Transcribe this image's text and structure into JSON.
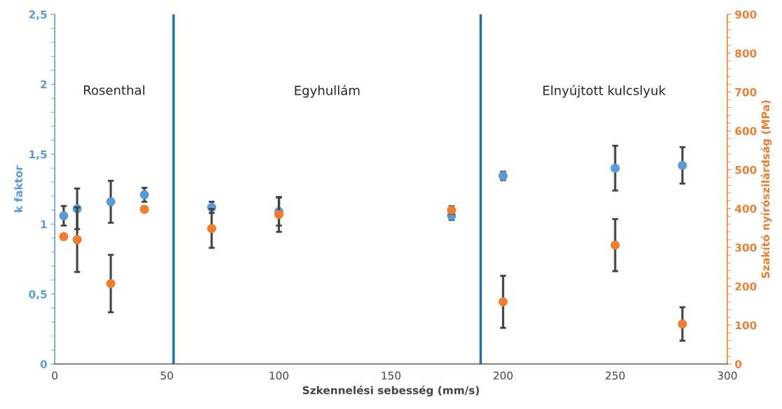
{
  "chart_data": {
    "type": "scatter",
    "xlabel": "Szkennelési sebesség (mm/s)",
    "ylabel": "k faktor",
    "y2label": "Szakító nyírószilárdság (MPa)",
    "x": [
      4,
      10,
      25,
      40,
      70,
      100,
      177,
      200,
      250,
      280
    ],
    "series": [
      {
        "color": "#5b9bd5",
        "values": [
          1.06,
          1.11,
          1.16,
          1.21,
          1.12,
          1.09,
          1.06,
          1.345,
          1.4,
          1.42
        ],
        "errors": [
          0.07,
          0.145,
          0.15,
          0.05,
          0.04,
          0.1,
          0.03,
          0.03,
          0.16,
          0.13
        ]
      },
      {
        "color": "#ed7d31",
        "axis": "y2",
        "values": [
          328,
          320,
          207,
          398,
          349,
          385,
          396,
          160,
          306,
          103
        ],
        "errors": [
          null,
          83,
          74,
          null,
          50,
          45,
          10,
          67,
          67,
          43
        ]
      }
    ],
    "xlim": [
      0,
      300
    ],
    "xticks": [
      0,
      50,
      100,
      150,
      200,
      250,
      300
    ],
    "ylim": [
      0,
      2.5
    ],
    "yticks": [
      0,
      {
        "value": 0.5,
        "label": "0,5"
      },
      1,
      {
        "value": 1.5,
        "label": "1,5"
      },
      2,
      {
        "value": 2.5,
        "label": "2,5"
      }
    ],
    "y2lim": [
      0,
      900
    ],
    "y2ticks": [
      0,
      100,
      200,
      300,
      400,
      500,
      600,
      700,
      800,
      900
    ],
    "ref_lines": [
      {
        "axis": "x",
        "value": 53,
        "color": "#1f6fad"
      },
      {
        "axis": "x",
        "value": 190,
        "color": "#1f6fad"
      }
    ],
    "annotations": [
      "Rosenthal",
      "Egyhullám",
      "Elnyújtott kulcslyuk"
    ],
    "marker": "circle",
    "grid": false,
    "legend": false
  }
}
